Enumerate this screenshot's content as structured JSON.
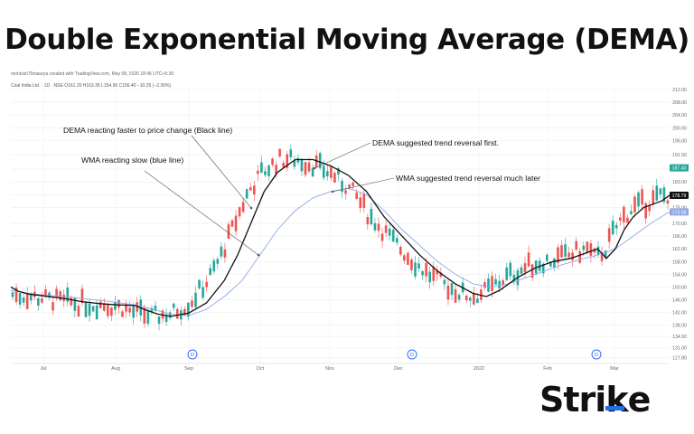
{
  "title": "Double Exponential Moving Average (DEMA)",
  "credit": "mohnish79maurya created with TradingView.com, May 08, 2026 18:46 UTC+5:30",
  "symbol_line": "Coal India Ltd. · 1D · NSE  O161.20  H163.35  L154.90  C156.40  −10.25 (−2.30%)",
  "logo": "Strike",
  "colors": {
    "up": "#26a69a",
    "down": "#ef5350",
    "dema": "#111111",
    "wma": "#8fa9e6",
    "logo_accent": "#1f6feb",
    "grid": "#eeeeee"
  },
  "chart_data": {
    "type": "candlestick",
    "x_ticks": [
      "Jul",
      "Aug",
      "Sep",
      "Oct",
      "Nov",
      "Dec",
      "2022",
      "Feb",
      "Mar"
    ],
    "y_ticks": [
      127.8,
      131.0,
      134.5,
      138.0,
      142.0,
      146.0,
      150.0,
      154.0,
      158.0,
      162.0,
      166.0,
      170.0,
      175.0,
      179.0,
      183.0,
      187.0,
      191.5,
      196.0,
      200.0,
      204.0,
      208.0,
      212.0
    ],
    "ylim": [
      126,
      212
    ],
    "last_price_labels": [
      {
        "value": 187.4,
        "color": "#26a69a"
      },
      {
        "value": 178.79,
        "color": "#111111"
      },
      {
        "value": 173.58,
        "color": "#8fa9e6"
      }
    ],
    "grid": true,
    "dividend_markers": [
      "Sep",
      "Dec",
      "Mar"
    ],
    "dividend_marker_label": "D",
    "series": [
      {
        "name": "DEMA",
        "values": [
          [
            0,
            150
          ],
          [
            8,
            148.7
          ],
          [
            20,
            147.8
          ],
          [
            40,
            147.1
          ],
          [
            60,
            146.4
          ],
          [
            80,
            145.4
          ],
          [
            100,
            144.8
          ],
          [
            120,
            144.4
          ],
          [
            140,
            144.2
          ],
          [
            150,
            143
          ],
          [
            165,
            141.5
          ],
          [
            180,
            140.8
          ],
          [
            200,
            141.8
          ],
          [
            220,
            145
          ],
          [
            240,
            152
          ],
          [
            255,
            160
          ],
          [
            270,
            170
          ],
          [
            285,
            180
          ],
          [
            300,
            186
          ],
          [
            320,
            190
          ],
          [
            340,
            190
          ],
          [
            360,
            188
          ],
          [
            380,
            185
          ],
          [
            400,
            180
          ],
          [
            420,
            172
          ],
          [
            440,
            166
          ],
          [
            460,
            160
          ],
          [
            480,
            155
          ],
          [
            500,
            151
          ],
          [
            520,
            148
          ],
          [
            535,
            147
          ],
          [
            550,
            149
          ],
          [
            570,
            153
          ],
          [
            590,
            156
          ],
          [
            610,
            158
          ],
          [
            630,
            159
          ],
          [
            650,
            161
          ],
          [
            660,
            162
          ],
          [
            670,
            159
          ],
          [
            680,
            162
          ],
          [
            690,
            168
          ],
          [
            700,
            172
          ],
          [
            712,
            175
          ],
          [
            722,
            176
          ],
          [
            732,
            177
          ],
          [
            741,
            178.8
          ]
        ]
      },
      {
        "name": "WMA",
        "values": [
          [
            0,
            149
          ],
          [
            20,
            148
          ],
          [
            40,
            147.4
          ],
          [
            60,
            147
          ],
          [
            80,
            146.4
          ],
          [
            100,
            145.8
          ],
          [
            120,
            145.2
          ],
          [
            140,
            144.3
          ],
          [
            160,
            143
          ],
          [
            180,
            141.4
          ],
          [
            200,
            141
          ],
          [
            220,
            143
          ],
          [
            240,
            147
          ],
          [
            260,
            152
          ],
          [
            280,
            160
          ],
          [
            300,
            168
          ],
          [
            320,
            174
          ],
          [
            340,
            178
          ],
          [
            360,
            180
          ],
          [
            380,
            181
          ],
          [
            400,
            179
          ],
          [
            420,
            174
          ],
          [
            440,
            168
          ],
          [
            460,
            163
          ],
          [
            480,
            158
          ],
          [
            500,
            154
          ],
          [
            520,
            151
          ],
          [
            540,
            150
          ],
          [
            560,
            151
          ],
          [
            580,
            153
          ],
          [
            600,
            155
          ],
          [
            620,
            157
          ],
          [
            640,
            158.6
          ],
          [
            660,
            160
          ],
          [
            680,
            162
          ],
          [
            700,
            166
          ],
          [
            720,
            170
          ],
          [
            741,
            173.6
          ]
        ]
      }
    ],
    "annotations": [
      {
        "text": "DEMA reacting faster to price change (Black line)"
      },
      {
        "text": "WMA reacting slow (blue line)"
      },
      {
        "text": "DEMA suggested trend reversal first."
      },
      {
        "text": "WMA suggested trend reversal much later"
      }
    ]
  }
}
